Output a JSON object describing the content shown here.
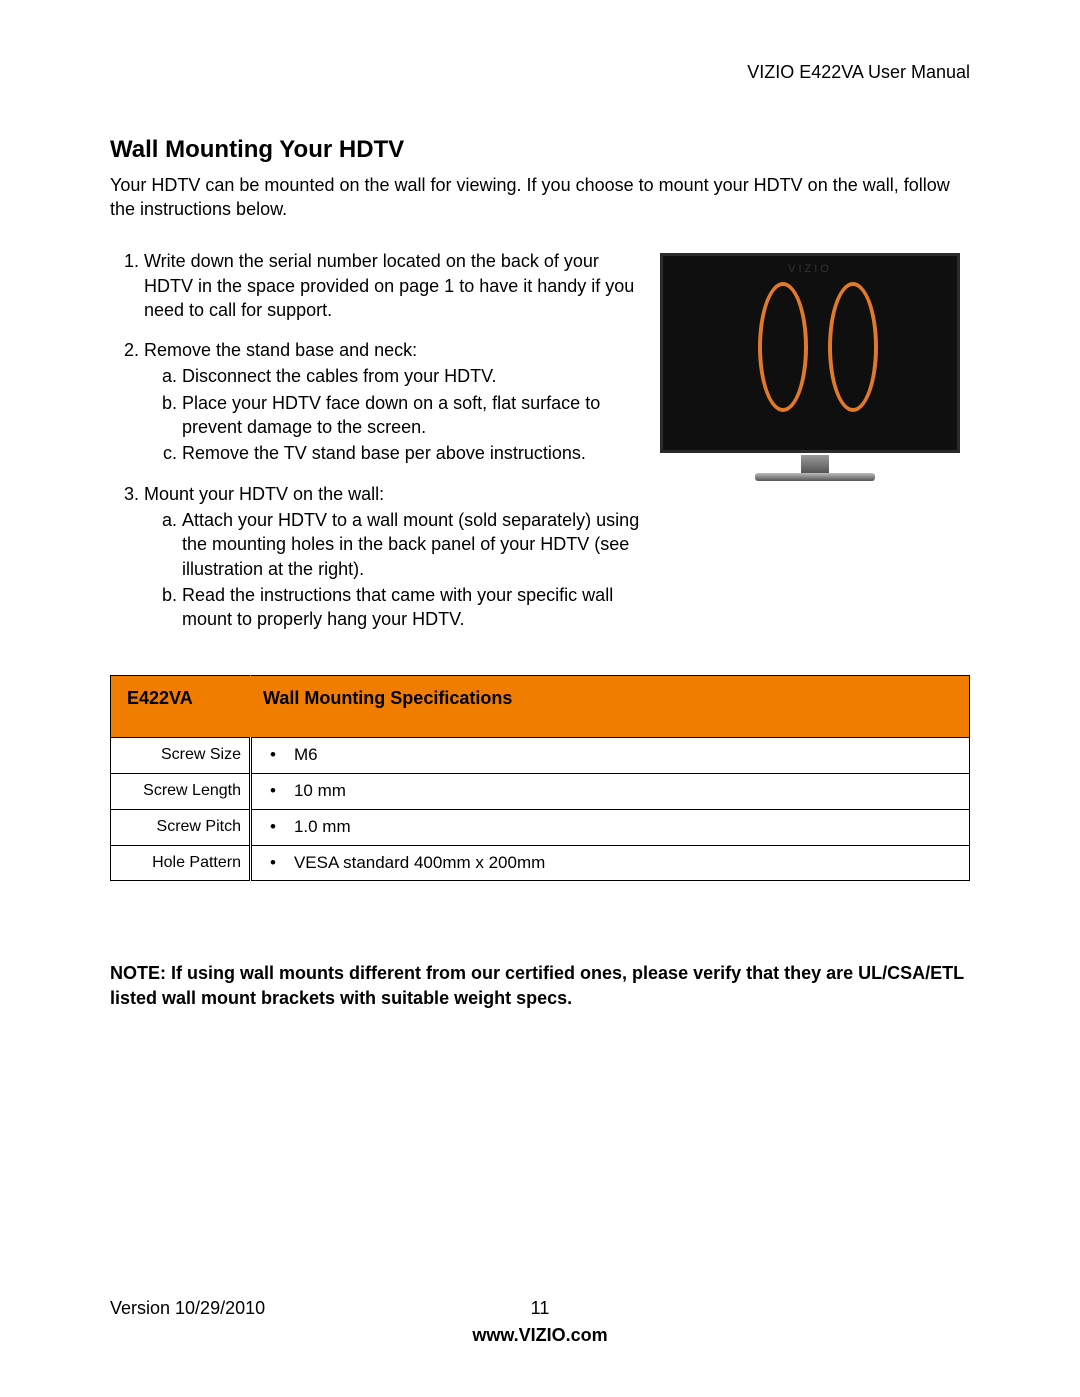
{
  "header": {
    "doc_title": "VIZIO E422VA User Manual"
  },
  "section": {
    "title": "Wall Mounting Your HDTV",
    "intro": "Your HDTV can be mounted on the wall for viewing. If you choose to mount your HDTV on the wall, follow the instructions below."
  },
  "steps": {
    "s1": "Write down the serial number located on the back of your HDTV in the space provided on page 1 to have it handy if you need to call for support.",
    "s2": "Remove the stand base and neck:",
    "s2a": "Disconnect the cables from your HDTV.",
    "s2b": "Place your HDTV face down on a soft, flat surface to prevent damage to the screen.",
    "s2c": "Remove the TV stand base per above instructions.",
    "s3": "Mount your HDTV on the wall:",
    "s3a": "Attach your HDTV to a wall mount (sold separately) using the mounting holes in the back panel of your HDTV (see illustration at the right).",
    "s3b": "Read the instructions that came with your specific wall mount to properly hang your HDTV."
  },
  "illustration": {
    "logo": "VIZIO",
    "oval_color": "#e07a2a",
    "frame_color": "#0f0f0f"
  },
  "spec_table": {
    "model": "E422VA",
    "title": "Wall Mounting Specifications",
    "header_bg": "#f07c00",
    "rows": [
      {
        "label": "Screw Size",
        "value": "M6"
      },
      {
        "label": "Screw Length",
        "value": "10 mm"
      },
      {
        "label": "Screw Pitch",
        "value": "1.0 mm"
      },
      {
        "label": "Hole Pattern",
        "value": "VESA standard 400mm x 200mm"
      }
    ]
  },
  "note": "NOTE: If using wall mounts different from our certified ones, please verify that they are UL/CSA/ETL listed wall mount brackets with suitable weight specs.",
  "footer": {
    "version": "Version 10/29/2010",
    "page": "11",
    "url": "www.VIZIO.com"
  }
}
